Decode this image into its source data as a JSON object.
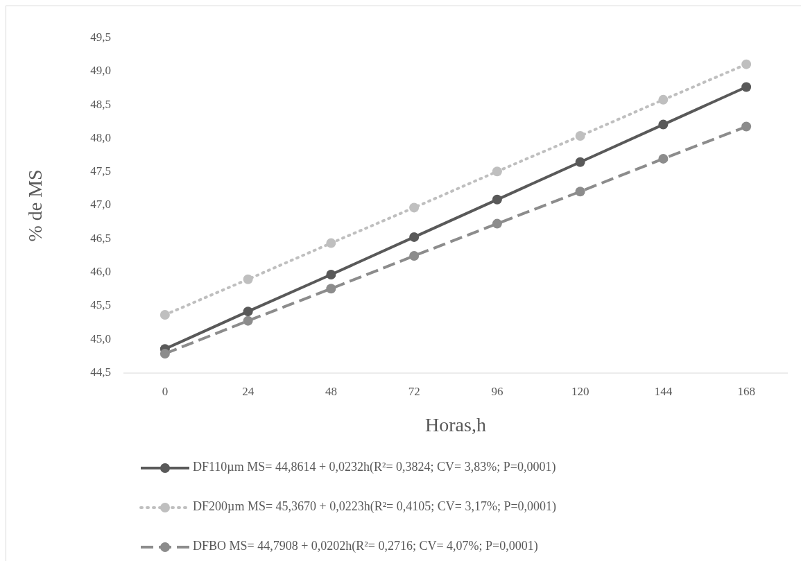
{
  "chart_data": {
    "type": "line",
    "xlabel": "Horas,h",
    "ylabel": "% de MS",
    "categories": [
      "0",
      "24",
      "48",
      "72",
      "96",
      "120",
      "144",
      "168"
    ],
    "ylim": [
      44.5,
      49.5
    ],
    "yticks": [
      {
        "value": 44.5,
        "label": "44,5"
      },
      {
        "value": 45,
        "label": "45,0"
      },
      {
        "value": 45.5,
        "label": "45,5"
      },
      {
        "value": 46,
        "label": "46,0"
      },
      {
        "value": 46.5,
        "label": "46,5"
      },
      {
        "value": 47,
        "label": "47,0"
      },
      {
        "value": 47.5,
        "label": "47,5"
      },
      {
        "value": 48,
        "label": "48,0"
      },
      {
        "value": 48.5,
        "label": "48,5"
      },
      {
        "value": 49,
        "label": "49,0"
      },
      {
        "value": 49.5,
        "label": "49,5"
      }
    ],
    "grid": false,
    "legend": "bottom",
    "marker": "circle",
    "series": [
      {
        "name": "DF110µm MS= 44,8614 + 0,0232h(R²= 0,3824;  CV= 3,83%; P=0,0001)",
        "color": "#595959",
        "line_style": "solid",
        "values": [
          44.86,
          45.42,
          45.97,
          46.53,
          47.09,
          47.65,
          48.21,
          48.77
        ]
      },
      {
        "name": "DF200µm MS= 45,3670 + 0,0223h(R²= 0,4105;  CV= 3,17%; P=0,0001)",
        "color": "#bfbfbf",
        "line_style": "dotted",
        "values": [
          45.37,
          45.9,
          46.44,
          46.97,
          47.51,
          48.04,
          48.58,
          49.11
        ]
      },
      {
        "name": "DFBO MS= 44,7908 + 0,0202h(R²= 0,2716;  CV= 4,07%; P=0,0001)",
        "color": "#8c8c8c",
        "line_style": "dashed",
        "values": [
          44.79,
          45.28,
          45.76,
          46.25,
          46.73,
          47.21,
          47.7,
          48.18
        ]
      }
    ]
  }
}
